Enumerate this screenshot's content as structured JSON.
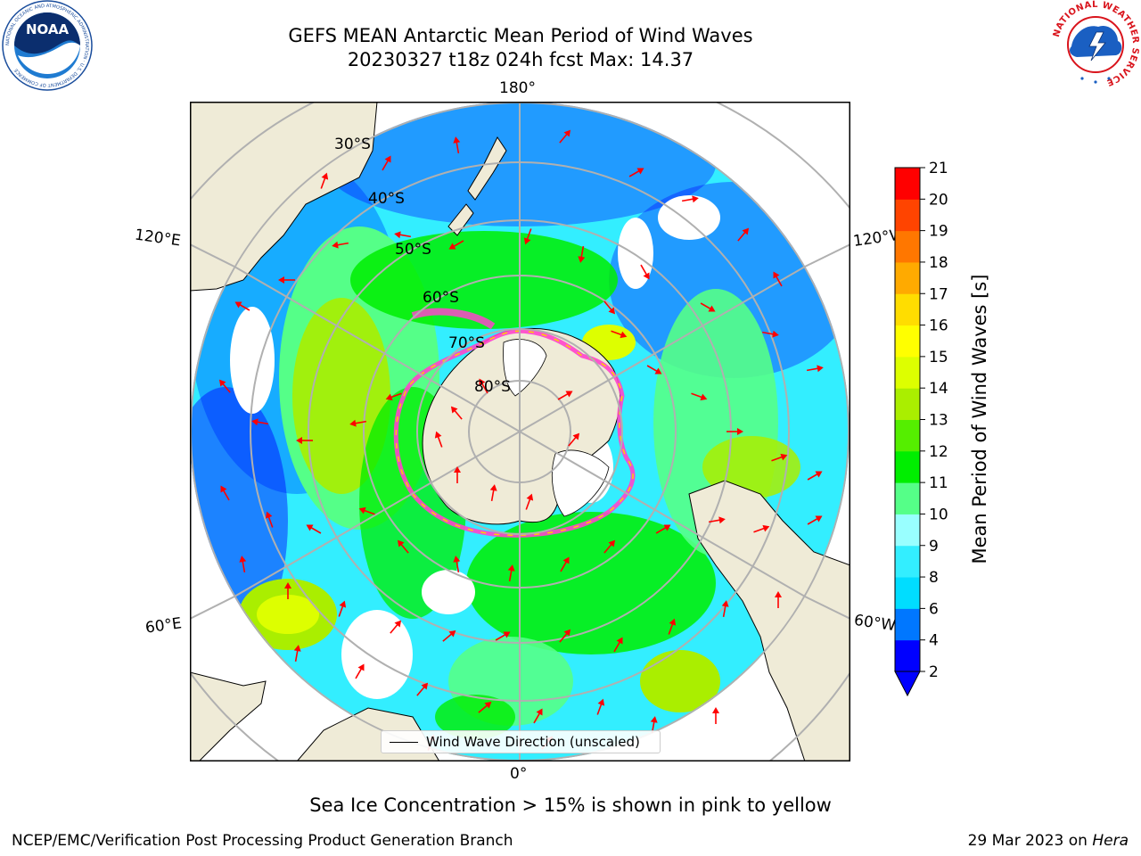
{
  "header": {
    "title_line1": "GEFS MEAN Antarctic Mean Period of Wind Waves",
    "title_line2": "20230327 t18z 024h fcst   Max: 14.37"
  },
  "logos": {
    "noaa_text": "NOAA",
    "noaa_ring_text": "NATIONAL OCEANIC AND ATMOSPHERIC ADMINISTRATION · U.S. DEPARTMENT OF COMMERCE",
    "nws_ring_text": "NATIONAL WEATHER SERVICE"
  },
  "map": {
    "projection": "south polar stereographic",
    "lon_labels": {
      "top": "180°",
      "bottom": "0°",
      "upper_left": "120°E",
      "upper_right": "120°W",
      "lower_left": "60°E",
      "lower_right": "60°W"
    },
    "lat_labels": [
      "30°S",
      "40°S",
      "50°S",
      "60°S",
      "70°S",
      "80°S"
    ],
    "colors": {
      "land": "#efebd7",
      "coast": "#000000",
      "grid": "#b0b0b0",
      "arrow": "#ff0000",
      "ice_pink": "#ff44cc",
      "ice_yellow": "#ffd000"
    }
  },
  "colorbar": {
    "title": "Mean Period of Wind Waves [s]",
    "ticks": [
      "2",
      "4",
      "6",
      "8",
      "9",
      "10",
      "11",
      "12",
      "13",
      "14",
      "15",
      "16",
      "17",
      "18",
      "19",
      "20",
      "21"
    ],
    "colors": [
      "#0000ff",
      "#0077ff",
      "#00ddff",
      "#33eeff",
      "#99ffff",
      "#55ff88",
      "#00ee00",
      "#55ee00",
      "#aaee00",
      "#ddff00",
      "#ffff00",
      "#ffdd00",
      "#ffaa00",
      "#ff7700",
      "#ff4400",
      "#ff0000"
    ],
    "extend": "min"
  },
  "legend": {
    "label": "Wind Wave Direction (unscaled)"
  },
  "footnote": "Sea Ice Concentration > 15% is shown in pink to yellow",
  "credits": {
    "left": "NCEP/EMC/Verification Post Processing Product Generation Branch",
    "right_date": "29 Mar 2023 on",
    "right_host": "Hera"
  }
}
